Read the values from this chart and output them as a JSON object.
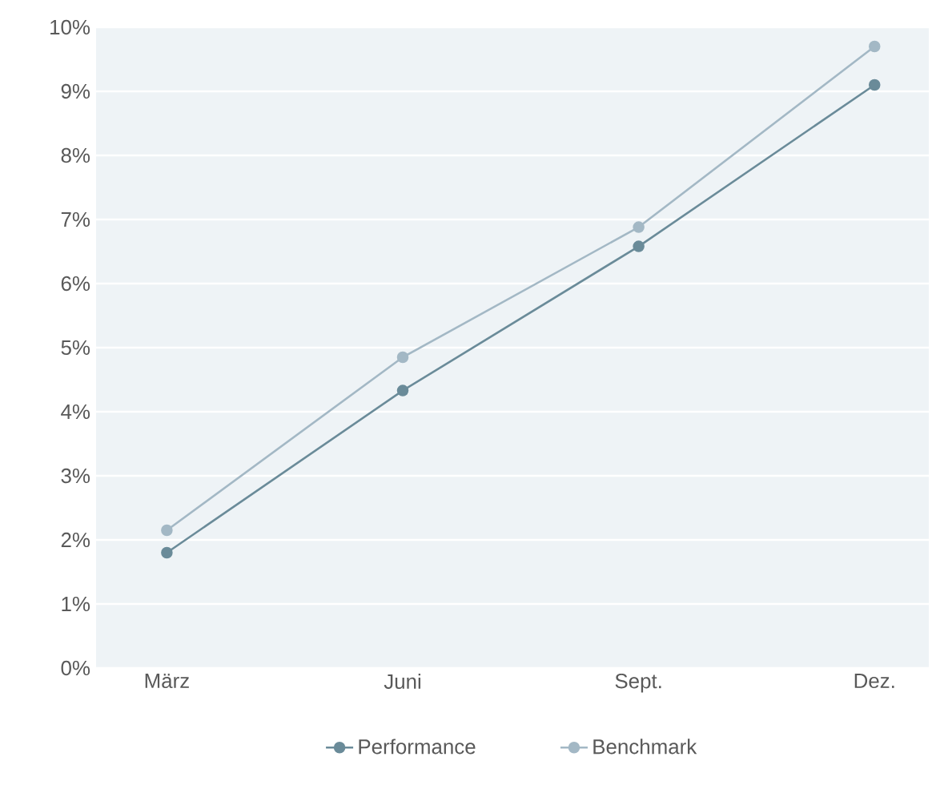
{
  "chart_data": {
    "type": "line",
    "categories": [
      "März",
      "Juni",
      "Sept.",
      "Dez."
    ],
    "series": [
      {
        "name": "Performance",
        "color": "#6a8b99",
        "values": [
          1.8,
          4.33,
          6.58,
          9.1
        ]
      },
      {
        "name": "Benchmark",
        "color": "#a3b8c5",
        "values": [
          2.15,
          4.85,
          6.88,
          9.7
        ]
      }
    ],
    "ylim": [
      0,
      10
    ],
    "yticks": [
      {
        "value": 0,
        "label": "0%"
      },
      {
        "value": 1,
        "label": "1%"
      },
      {
        "value": 2,
        "label": "2%"
      },
      {
        "value": 3,
        "label": "3%"
      },
      {
        "value": 4,
        "label": "4%"
      },
      {
        "value": 5,
        "label": "5%"
      },
      {
        "value": 6,
        "label": "6%"
      },
      {
        "value": 7,
        "label": "7%"
      },
      {
        "value": 8,
        "label": "8%"
      },
      {
        "value": 9,
        "label": "9%"
      },
      {
        "value": 10,
        "label": "10%"
      }
    ],
    "grid": "y",
    "legend": "bottom",
    "marker": "circle",
    "line_style": "solid"
  }
}
